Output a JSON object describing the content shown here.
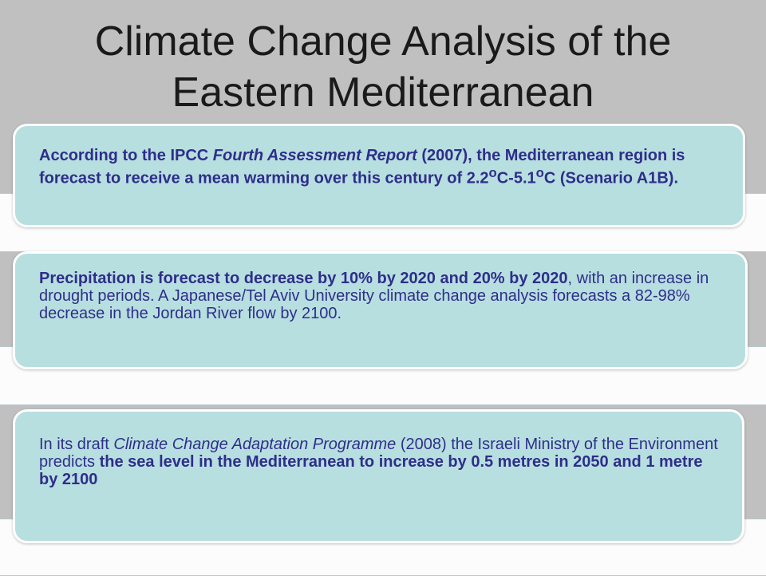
{
  "slide": {
    "title_line1": "Climate Change Analysis of the",
    "title_line2": "Eastern Mediterranean"
  },
  "cards": [
    {
      "seg1": "According to the IPCC ",
      "seg2": "Fourth Assessment Report",
      "seg3": " (2007), the Mediterranean region is forecast to receive a mean warming over this century of 2.2",
      "sup1": "o",
      "seg4": "C-5.1",
      "sup2": "o",
      "seg5": "C  (Scenario A1B)."
    },
    {
      "seg1": "Precipitation is forecast to decrease by 10% by 2020 and 20% by 2020",
      "seg2": ", with an increase in drought periods. A Japanese/Tel Aviv University climate change analysis forecasts a 82-98% decrease in the Jordan River flow by 2100."
    },
    {
      "seg1": "In its draft ",
      "seg2": "Climate Change Adaptation Programme",
      "seg3": " (2008) the Israeli Ministry of the Environment predicts ",
      "seg4": "the sea level in the Mediterranean to increase by 0.5 metres in 2050 and 1 metre by 2100"
    }
  ],
  "colors": {
    "background": "#c0c0c0",
    "card_fill": "#b8dfe0",
    "text": "#2e2e8a",
    "title": "#1a1a1a"
  }
}
